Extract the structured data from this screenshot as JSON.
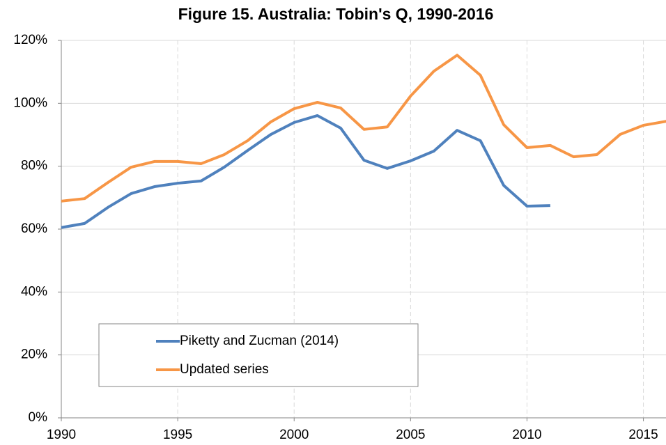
{
  "chart_data": {
    "type": "line",
    "title": "Figure 15. Australia: Tobin's Q, 1990-2016",
    "x": [
      1990,
      1991,
      1992,
      1993,
      1994,
      1995,
      1996,
      1997,
      1998,
      1999,
      2000,
      2001,
      2002,
      2003,
      2004,
      2005,
      2006,
      2007,
      2008,
      2009,
      2010,
      2011,
      2012,
      2013,
      2014,
      2015,
      2016
    ],
    "series": [
      {
        "name": "Piketty and Zucman (2014)",
        "color": "#4f81bd",
        "values": [
          60.5,
          61.8,
          66.9,
          71.3,
          73.5,
          74.6,
          75.3,
          79.7,
          85,
          90.1,
          93.9,
          96.1,
          92.1,
          81.9,
          79.3,
          81.7,
          84.8,
          91.4,
          88.1,
          73.9,
          67.3,
          67.5,
          null,
          null,
          null,
          null,
          null
        ]
      },
      {
        "name": "Updated series",
        "color": "#f79646",
        "values": [
          68.9,
          69.7,
          74.8,
          79.7,
          81.5,
          81.5,
          80.8,
          83.7,
          88.1,
          94.1,
          98.3,
          100.3,
          98.5,
          91.7,
          92.5,
          102.3,
          110.2,
          115.3,
          108.9,
          93.2,
          85.9,
          86.6,
          83,
          83.7,
          90.1,
          93,
          94.3
        ]
      }
    ],
    "xlim": [
      1990,
      2016
    ],
    "xticks": [
      1990,
      1995,
      2000,
      2005,
      2010,
      2015
    ],
    "ylim": [
      0,
      120
    ],
    "yticks": [
      {
        "value": 0,
        "label": "0%"
      },
      {
        "value": 20,
        "label": "20%"
      },
      {
        "value": 40,
        "label": "40%"
      },
      {
        "value": 60,
        "label": "60%"
      },
      {
        "value": 80,
        "label": "80%"
      },
      {
        "value": 100,
        "label": "100%"
      },
      {
        "value": 120,
        "label": "120%"
      }
    ],
    "grid": true
  }
}
